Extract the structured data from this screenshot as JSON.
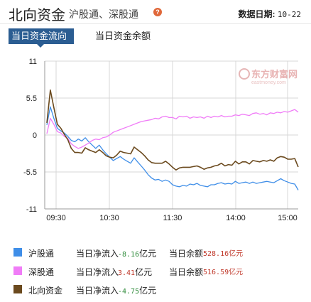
{
  "header": {
    "title": "北向资金",
    "subtitle": "沪股通、深股通",
    "help_icon": "?",
    "date_label": "数据日期:",
    "date_value": "10-22"
  },
  "tabs": [
    {
      "label": "当日资金流向",
      "active": true
    },
    {
      "label": "当日资金余额",
      "active": false
    }
  ],
  "watermark": {
    "text": "东方财富网",
    "subtext": "eastmoney.com"
  },
  "chart_data": {
    "type": "line",
    "ylim": [
      -11,
      11
    ],
    "yticks": [
      "11",
      "5.5",
      "0",
      "-5.5",
      "-11"
    ],
    "xticks": [
      "09:30",
      "10:30",
      "11:30",
      "14:00",
      "15:00"
    ],
    "grid": true,
    "series": [
      {
        "name": "沪股通",
        "color": "#3f8ee8",
        "values": [
          1.5,
          4.2,
          2.5,
          1.0,
          0.6,
          0.3,
          -0.2,
          -0.8,
          -1.0,
          -0.6,
          -0.9,
          -0.4,
          -1.0,
          -1.5,
          -2.0,
          -1.5,
          -2.2,
          -2.8,
          -3.3,
          -3.8,
          -3.5,
          -3.2,
          -3.6,
          -3.9,
          -4.2,
          -3.4,
          -4.0,
          -4.6,
          -5.2,
          -5.9,
          -6.4,
          -6.7,
          -6.6,
          -6.9,
          -6.7,
          -6.9,
          -7.4,
          -7.6,
          -7.7,
          -7.5,
          -7.6,
          -7.3,
          -7.4,
          -7.2,
          -7.5,
          -7.6,
          -7.7,
          -7.4,
          -7.4,
          -7.2,
          -7.1,
          -7.3,
          -7.2,
          -7.3,
          -6.9,
          -7.2,
          -7.1,
          -7.0,
          -7.2,
          -7.0,
          -7.2,
          -7.1,
          -7.0,
          -6.9,
          -7.0,
          -7.1,
          -6.8,
          -6.5,
          -6.8,
          -7.0,
          -7.2,
          -7.3,
          -8.2
        ]
      },
      {
        "name": "深股通",
        "color": "#f07cf7",
        "values": [
          0.2,
          2.5,
          1.6,
          0.5,
          0.3,
          -0.2,
          -0.5,
          -1.3,
          -1.7,
          -2.0,
          -1.8,
          -1.5,
          -1.2,
          -0.8,
          -0.6,
          -0.7,
          -0.4,
          -0.3,
          0.0,
          0.4,
          0.6,
          0.8,
          1.0,
          1.2,
          1.4,
          1.6,
          1.8,
          2.0,
          2.1,
          2.2,
          2.3,
          2.5,
          2.4,
          2.7,
          2.8,
          2.6,
          2.6,
          2.4,
          2.8,
          2.7,
          2.8,
          2.5,
          2.7,
          2.6,
          2.7,
          2.5,
          2.8,
          2.6,
          2.8,
          2.7,
          2.9,
          2.7,
          2.8,
          2.8,
          3.0,
          2.9,
          3.1,
          3.0,
          2.9,
          3.2,
          3.3,
          3.1,
          3.2,
          3.0,
          3.3,
          3.2,
          3.4,
          3.3,
          3.5,
          3.4,
          3.6,
          3.8,
          3.41
        ]
      },
      {
        "name": "北向资金",
        "color": "#6b4a1e",
        "values": [
          1.8,
          6.7,
          4.1,
          1.6,
          1.0,
          0.1,
          -0.7,
          -2.0,
          -2.6,
          -2.6,
          -2.7,
          -1.9,
          -2.2,
          -2.4,
          -2.6,
          -2.2,
          -2.6,
          -3.1,
          -3.3,
          -3.4,
          -3.0,
          -2.4,
          -2.6,
          -2.7,
          -2.8,
          -1.8,
          -2.2,
          -2.6,
          -3.1,
          -3.7,
          -4.1,
          -4.2,
          -4.2,
          -4.2,
          -3.9,
          -4.3,
          -4.8,
          -5.2,
          -4.9,
          -4.8,
          -4.8,
          -4.8,
          -4.7,
          -4.6,
          -4.8,
          -5.1,
          -4.9,
          -4.8,
          -4.6,
          -4.5,
          -4.2,
          -4.6,
          -4.4,
          -4.5,
          -3.9,
          -4.3,
          -4.0,
          -4.0,
          -4.3,
          -3.8,
          -3.9,
          -4.0,
          -3.8,
          -3.9,
          -3.7,
          -3.9,
          -3.4,
          -3.2,
          -3.3,
          -3.6,
          -3.6,
          -3.5,
          -4.75
        ]
      }
    ]
  },
  "legend": [
    {
      "name": "沪股通",
      "color": "#3f8ee8",
      "flow_label": "当日净流入",
      "flow_value": "-8.16",
      "flow_unit": "亿元",
      "flow_positive": false,
      "balance_label": "当日余额",
      "balance_value": "528.16亿元"
    },
    {
      "name": "深股通",
      "color": "#f07cf7",
      "flow_label": "当日净流入",
      "flow_value": "3.41",
      "flow_unit": "亿元",
      "flow_positive": true,
      "balance_label": "当日余额",
      "balance_value": "516.59亿元"
    },
    {
      "name": "北向资金",
      "color": "#6b4a1e",
      "flow_label": "当日净流入",
      "flow_value": "-4.75",
      "flow_unit": "亿元",
      "flow_positive": false,
      "balance_label": "",
      "balance_value": ""
    }
  ]
}
